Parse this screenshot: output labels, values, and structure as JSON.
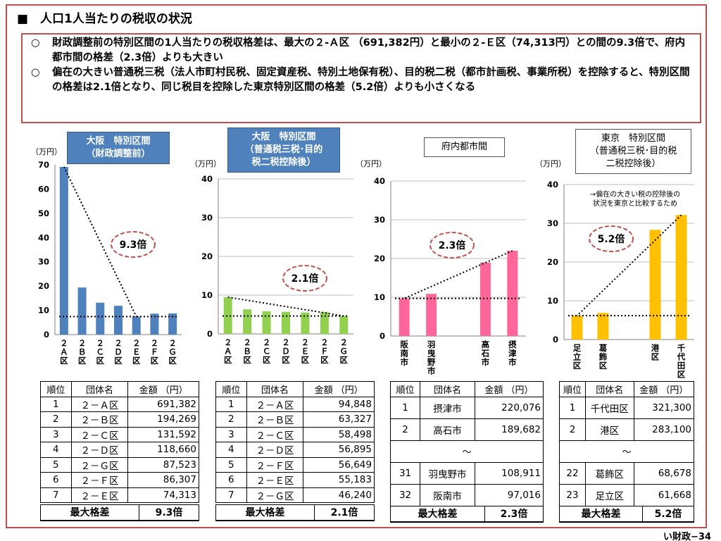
{
  "page": {
    "title": "■　人口1人当たりの税収の状況",
    "summary1": "財政調整前の特別区間の1人当たりの税収格差は、最大の２-Ａ区 （691,382円）と最小の２-Ｅ区（74,313円）との間の9.3倍で、府内都市間の格差（2.3倍）よりも大きい",
    "summary2": "偏在の大きい普通税三税（法人市町村民税、固定資産税、特別土地保有税）、目的税二税（都市計画税、事業所税）を控除すると、特別区間の格差は2.1倍となり、同じ税目を控除した東京特別区間の格差（5.2倍）よりも小さくなる",
    "bullet": "○",
    "page_number": "い財政−34",
    "colors": {
      "frame": "#c0504d",
      "blue_bar": "#4f81bd",
      "green_bar": "#92d050",
      "pink_bar": "#ff6699",
      "yellow_bar": "#ffc000",
      "ratio_oval": "#c0504d"
    }
  },
  "chart_data": [
    {
      "type": "bar",
      "title": "大阪　特別区間\n（財政調整前）",
      "unit": "（万円）",
      "categories": [
        "２\nＡ\n区",
        "２\nＢ\n区",
        "２\nＣ\n区",
        "２\nＤ\n区",
        "２\nＥ\n区",
        "２\nＦ\n区",
        "２\nＧ\n区"
      ],
      "values": [
        69.1382,
        19.4269,
        13.1592,
        11.866,
        7.4313,
        8.6307,
        8.7523
      ],
      "ylim": [
        0,
        70
      ],
      "yticks": [
        0,
        10,
        20,
        30,
        40,
        50,
        60,
        70
      ],
      "grid": false,
      "ratio_label": "9.3倍",
      "color": "#4f81bd"
    },
    {
      "type": "bar",
      "title": "大阪　特別区間\n（普通税三税･目的\n税二税控除後）",
      "unit": "（万円）",
      "categories": [
        "２\nＡ\n区",
        "２\nＢ\n区",
        "２\nＣ\n区",
        "２\nＤ\n区",
        "２\nＥ\n区",
        "２\nＦ\n区",
        "２\nＧ\n区"
      ],
      "values": [
        9.4848,
        6.3327,
        5.8498,
        5.6895,
        5.5183,
        5.6649,
        4.624
      ],
      "ylim": [
        0,
        40
      ],
      "yticks": [
        0,
        10,
        20,
        30,
        40
      ],
      "grid": true,
      "ratio_label": "2.1倍",
      "color": "#92d050"
    },
    {
      "type": "bar",
      "title": "府内都市間",
      "unit": "（万円）",
      "categories": [
        "阪\n南\n市",
        "羽\n曳\n野\n市",
        "",
        "高\n石\n市",
        "摂\n津\n市"
      ],
      "values": [
        9.7016,
        10.8911,
        null,
        18.9682,
        22.0076
      ],
      "ylim": [
        0,
        40
      ],
      "yticks": [
        0,
        10,
        20,
        30,
        40
      ],
      "grid": true,
      "ratio_label": "2.3倍",
      "color": "#ff6699"
    },
    {
      "type": "bar",
      "title": "東京　特別区間\n（普通税三税･目的税\n二税控除後）",
      "unit": "（万円）",
      "note": "→偏在の大きい税の控除後の\n状況を東京と比較するため",
      "categories": [
        "足\n立\n区",
        "葛\n飾\n区",
        "",
        "港\n区",
        "千\n代\n田\n区"
      ],
      "values": [
        6.1668,
        6.8678,
        null,
        28.31,
        32.13
      ],
      "ylim": [
        0,
        40
      ],
      "yticks": [
        0,
        10,
        20,
        30,
        40
      ],
      "grid": true,
      "ratio_label": "5.2倍",
      "color": "#ffc000"
    }
  ],
  "tables": [
    {
      "headers": [
        "順位",
        "団体名",
        "金額",
        "（円）"
      ],
      "rows": [
        [
          "1",
          "２－Ａ区",
          "691,382"
        ],
        [
          "2",
          "２－Ｂ区",
          "194,269"
        ],
        [
          "3",
          "２－Ｃ区",
          "131,592"
        ],
        [
          "4",
          "２－Ｄ区",
          "118,660"
        ],
        [
          "5",
          "２－Ｇ区",
          "87,523"
        ],
        [
          "6",
          "２－Ｆ区",
          "86,307"
        ],
        [
          "7",
          "２－Ｅ区",
          "74,313"
        ]
      ],
      "max_label": "最大格差",
      "max_value": "9.3倍"
    },
    {
      "headers": [
        "順位",
        "団体名",
        "金額",
        "（円）"
      ],
      "rows": [
        [
          "1",
          "２－Ａ区",
          "94,848"
        ],
        [
          "2",
          "２－Ｂ区",
          "63,327"
        ],
        [
          "3",
          "２－Ｃ区",
          "58,498"
        ],
        [
          "4",
          "２－Ｄ区",
          "56,895"
        ],
        [
          "5",
          "２－Ｆ区",
          "56,649"
        ],
        [
          "6",
          "２－Ｅ区",
          "55,183"
        ],
        [
          "7",
          "２－Ｇ区",
          "46,240"
        ]
      ],
      "max_label": "最大格差",
      "max_value": "2.1倍"
    },
    {
      "headers": [
        "順位",
        "団体名",
        "金額",
        "（円）"
      ],
      "rows": [
        [
          "1",
          "摂津市",
          "220,076"
        ],
        [
          "2",
          "高石市",
          "189,682"
        ],
        [
          "",
          "～",
          ""
        ],
        [
          "31",
          "羽曳野市",
          "108,911"
        ],
        [
          "32",
          "阪南市",
          "97,016"
        ]
      ],
      "max_label": "最大格差",
      "max_value": "2.3倍"
    },
    {
      "headers": [
        "順位",
        "団体名",
        "金額",
        "（円）"
      ],
      "rows": [
        [
          "1",
          "千代田区",
          "321,300"
        ],
        [
          "2",
          "港区",
          "283,100"
        ],
        [
          "",
          "～",
          ""
        ],
        [
          "22",
          "葛飾区",
          "68,678"
        ],
        [
          "23",
          "足立区",
          "61,668"
        ]
      ],
      "max_label": "最大格差",
      "max_value": "5.2倍"
    }
  ]
}
